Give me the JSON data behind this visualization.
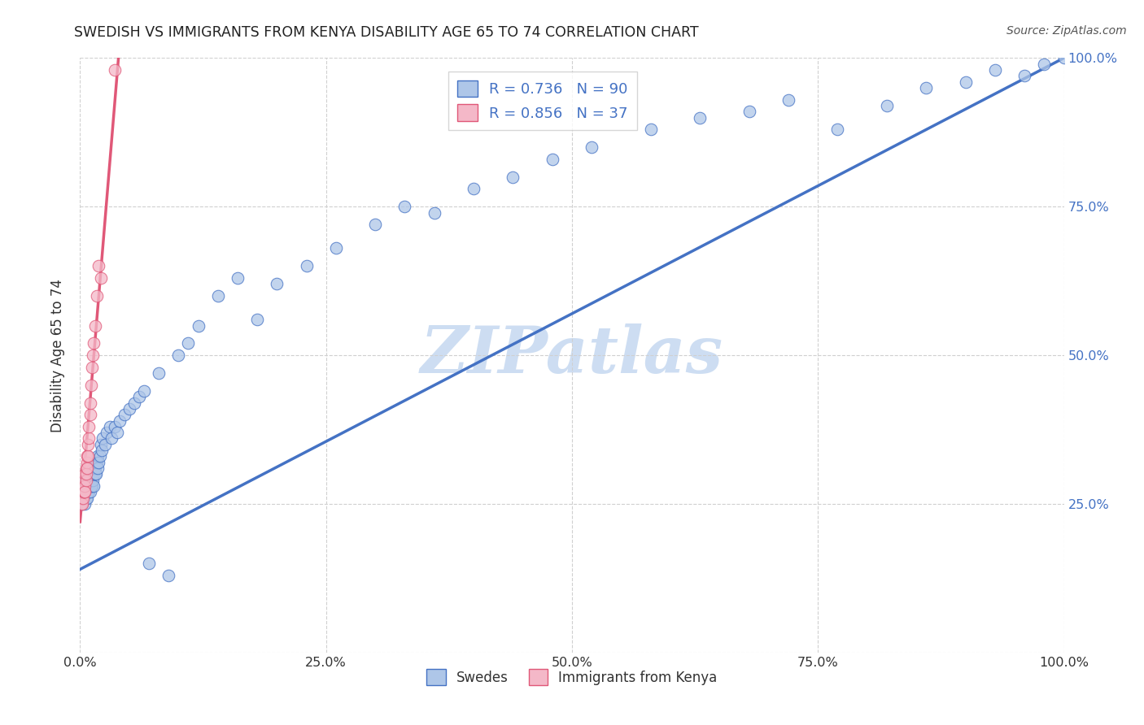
{
  "title": "SWEDISH VS IMMIGRANTS FROM KENYA DISABILITY AGE 65 TO 74 CORRELATION CHART",
  "source": "Source: ZipAtlas.com",
  "ylabel": "Disability Age 65 to 74",
  "r_swedes": 0.736,
  "n_swedes": 90,
  "r_kenya": 0.856,
  "n_kenya": 37,
  "legend_label_swedes": "Swedes",
  "legend_label_kenya": "Immigrants from Kenya",
  "color_swedes": "#aec6e8",
  "color_kenya": "#f4b8c8",
  "line_color_swedes": "#4472c4",
  "line_color_kenya": "#e05878",
  "watermark_text": "ZIPatlas",
  "watermark_color": "#c5d8f0",
  "background_color": "#ffffff",
  "grid_color": "#d0d0d0",
  "title_color": "#222222",
  "source_color": "#555555",
  "tick_color_right": "#4472c4",
  "tick_color_bottom": "#333333",
  "legend_r_n_color": "#4472c4",
  "swedes_x": [
    0.001,
    0.002,
    0.002,
    0.003,
    0.003,
    0.003,
    0.004,
    0.004,
    0.004,
    0.005,
    0.005,
    0.005,
    0.005,
    0.006,
    0.006,
    0.006,
    0.007,
    0.007,
    0.007,
    0.008,
    0.008,
    0.008,
    0.009,
    0.009,
    0.01,
    0.01,
    0.01,
    0.011,
    0.011,
    0.012,
    0.012,
    0.013,
    0.013,
    0.014,
    0.014,
    0.015,
    0.015,
    0.016,
    0.016,
    0.017,
    0.018,
    0.018,
    0.019,
    0.02,
    0.021,
    0.022,
    0.023,
    0.025,
    0.027,
    0.03,
    0.032,
    0.035,
    0.038,
    0.04,
    0.045,
    0.05,
    0.055,
    0.06,
    0.065,
    0.07,
    0.08,
    0.09,
    0.1,
    0.11,
    0.12,
    0.14,
    0.16,
    0.18,
    0.2,
    0.23,
    0.26,
    0.3,
    0.33,
    0.36,
    0.4,
    0.44,
    0.48,
    0.52,
    0.58,
    0.63,
    0.68,
    0.72,
    0.77,
    0.82,
    0.86,
    0.9,
    0.93,
    0.96,
    0.98,
    1.0
  ],
  "swedes_y": [
    0.26,
    0.28,
    0.25,
    0.27,
    0.27,
    0.28,
    0.26,
    0.28,
    0.27,
    0.25,
    0.27,
    0.28,
    0.29,
    0.26,
    0.28,
    0.27,
    0.27,
    0.28,
    0.26,
    0.27,
    0.28,
    0.29,
    0.27,
    0.28,
    0.28,
    0.27,
    0.29,
    0.28,
    0.3,
    0.28,
    0.3,
    0.29,
    0.31,
    0.3,
    0.28,
    0.3,
    0.31,
    0.32,
    0.3,
    0.32,
    0.31,
    0.33,
    0.32,
    0.33,
    0.35,
    0.34,
    0.36,
    0.35,
    0.37,
    0.38,
    0.36,
    0.38,
    0.37,
    0.39,
    0.4,
    0.41,
    0.42,
    0.43,
    0.44,
    0.15,
    0.47,
    0.13,
    0.5,
    0.52,
    0.55,
    0.6,
    0.63,
    0.56,
    0.62,
    0.65,
    0.68,
    0.72,
    0.75,
    0.74,
    0.78,
    0.8,
    0.83,
    0.85,
    0.88,
    0.9,
    0.91,
    0.93,
    0.88,
    0.92,
    0.95,
    0.96,
    0.98,
    0.97,
    0.99,
    1.0
  ],
  "kenya_x": [
    0.001,
    0.001,
    0.002,
    0.002,
    0.002,
    0.003,
    0.003,
    0.003,
    0.004,
    0.004,
    0.004,
    0.004,
    0.005,
    0.005,
    0.005,
    0.005,
    0.006,
    0.006,
    0.006,
    0.007,
    0.007,
    0.007,
    0.008,
    0.008,
    0.009,
    0.009,
    0.01,
    0.01,
    0.011,
    0.012,
    0.013,
    0.014,
    0.015,
    0.017,
    0.019,
    0.021,
    0.035
  ],
  "kenya_y": [
    0.25,
    0.26,
    0.26,
    0.27,
    0.25,
    0.27,
    0.26,
    0.28,
    0.27,
    0.27,
    0.28,
    0.29,
    0.27,
    0.28,
    0.3,
    0.27,
    0.29,
    0.31,
    0.3,
    0.32,
    0.31,
    0.33,
    0.33,
    0.35,
    0.36,
    0.38,
    0.4,
    0.42,
    0.45,
    0.48,
    0.5,
    0.52,
    0.55,
    0.6,
    0.65,
    0.63,
    0.98
  ],
  "swede_line_x": [
    0.0,
    1.0
  ],
  "swede_line_y": [
    0.14,
    1.0
  ],
  "kenya_line_x": [
    0.0,
    0.04
  ],
  "kenya_line_y": [
    0.22,
    1.02
  ],
  "xlim": [
    0.0,
    1.0
  ],
  "ylim": [
    0.0,
    1.0
  ],
  "xtick_vals": [
    0.0,
    0.25,
    0.5,
    0.75,
    1.0
  ],
  "xtick_labels": [
    "0.0%",
    "25.0%",
    "50.0%",
    "75.0%",
    "100.0%"
  ],
  "ytick_vals": [
    0.0,
    0.25,
    0.5,
    0.75,
    1.0
  ],
  "ytick_labels_right": [
    "",
    "25.0%",
    "50.0%",
    "75.0%",
    "100.0%"
  ]
}
